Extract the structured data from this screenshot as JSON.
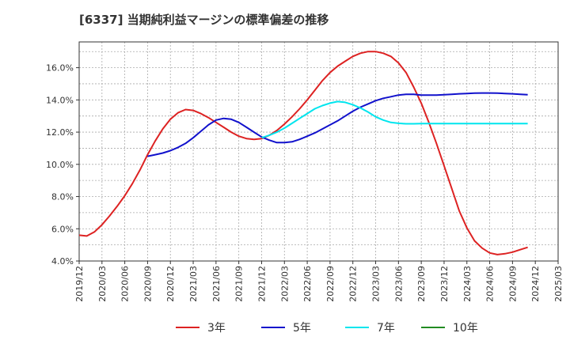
{
  "chart_data": {
    "type": "line",
    "title": "[6337]  当期純利益マージンの標準偏差の推移",
    "xlabel": "",
    "ylabel": "",
    "ylim": [
      4.0,
      17.6
    ],
    "y_ticks": [
      "4.0%",
      "6.0%",
      "8.0%",
      "10.0%",
      "12.0%",
      "14.0%",
      "16.0%"
    ],
    "y_tick_values": [
      4,
      6,
      8,
      10,
      12,
      14,
      16
    ],
    "x_ticks": [
      "2019/12",
      "2020/03",
      "2020/06",
      "2020/09",
      "2020/12",
      "2021/03",
      "2021/06",
      "2021/09",
      "2021/12",
      "2022/03",
      "2022/06",
      "2022/09",
      "2022/12",
      "2023/03",
      "2023/06",
      "2023/09",
      "2023/12",
      "2024/03",
      "2024/06",
      "2024/09",
      "2024/12",
      "2025/03"
    ],
    "grid": true,
    "legend_position": "bottom",
    "series": [
      {
        "name": "3年",
        "color": "#dd2222",
        "start_month_index": 0,
        "values": [
          5.6,
          5.55,
          5.8,
          6.25,
          6.8,
          7.4,
          8.05,
          8.8,
          9.65,
          10.6,
          11.45,
          12.2,
          12.8,
          13.2,
          13.4,
          13.35,
          13.15,
          12.9,
          12.6,
          12.3,
          12.0,
          11.75,
          11.6,
          11.55,
          11.6,
          11.8,
          12.1,
          12.5,
          12.95,
          13.45,
          14.0,
          14.6,
          15.2,
          15.7,
          16.1,
          16.4,
          16.7,
          16.9,
          17.0,
          17.0,
          16.9,
          16.7,
          16.3,
          15.7,
          14.8,
          13.8,
          12.6,
          11.3,
          9.9,
          8.5,
          7.1,
          6.05,
          5.25,
          4.8,
          4.5,
          4.4,
          4.45,
          4.55,
          4.7,
          4.85
        ]
      },
      {
        "name": "5年",
        "color": "#1111cc",
        "start_month_index": 9,
        "values": [
          10.5,
          10.6,
          10.7,
          10.85,
          11.05,
          11.3,
          11.65,
          12.05,
          12.45,
          12.75,
          12.85,
          12.8,
          12.6,
          12.3,
          12.0,
          11.7,
          11.5,
          11.35,
          11.35,
          11.4,
          11.55,
          11.75,
          11.95,
          12.2,
          12.45,
          12.7,
          13.0,
          13.3,
          13.55,
          13.75,
          13.95,
          14.1,
          14.2,
          14.3,
          14.35,
          14.35,
          14.3,
          14.3,
          14.3,
          14.32,
          14.35,
          14.38,
          14.4,
          14.42,
          14.43,
          14.43,
          14.42,
          14.4,
          14.38,
          14.35,
          14.32
        ]
      },
      {
        "name": "7年",
        "color": "#00e5ee",
        "start_month_index": 24,
        "values": [
          11.65,
          11.8,
          12.0,
          12.25,
          12.55,
          12.85,
          13.15,
          13.45,
          13.65,
          13.8,
          13.9,
          13.85,
          13.7,
          13.5,
          13.25,
          12.95,
          12.75,
          12.6,
          12.55,
          12.52,
          12.52,
          12.53,
          12.53,
          12.53,
          12.53,
          12.53,
          12.53,
          12.53,
          12.53,
          12.53,
          12.53,
          12.53,
          12.53,
          12.53,
          12.53,
          12.53
        ]
      },
      {
        "name": "10年",
        "color": "#228b22",
        "start_month_index": 0,
        "values": []
      }
    ]
  }
}
